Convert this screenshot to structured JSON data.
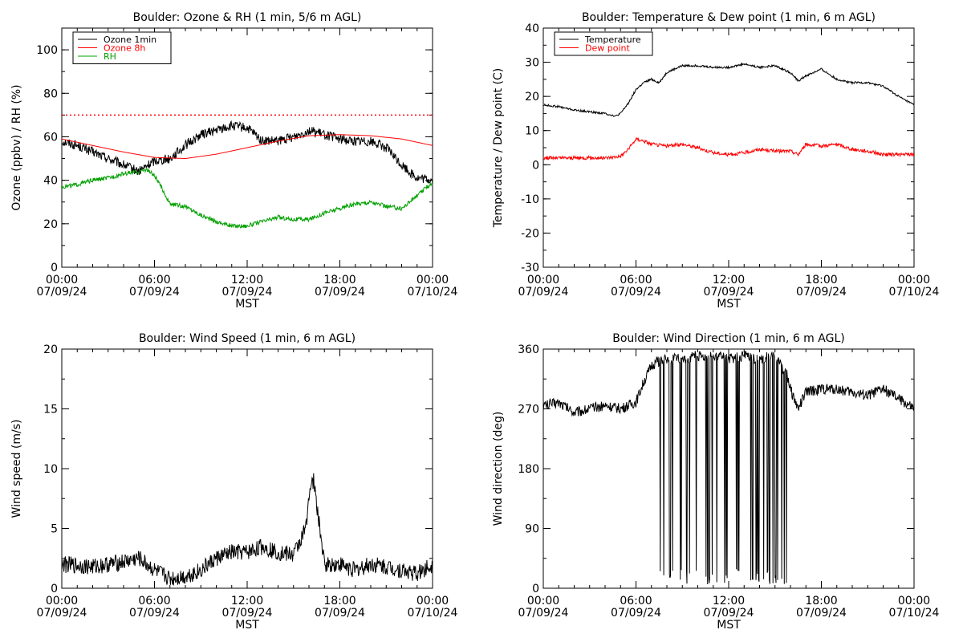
{
  "chart_data": [
    {
      "id": "ozone-rh",
      "type": "line",
      "title": "Boulder: Ozone & RH (1 min, 5/6 m AGL)",
      "xlabel": "MST",
      "ylabel": "Ozone (ppbv) / RH (%)",
      "xlim": [
        "07/09/24 00:00",
        "07/10/24 00:00"
      ],
      "ylim": [
        0,
        110
      ],
      "x_ticks": [
        {
          "time": "00:00",
          "date": "07/09/24"
        },
        {
          "time": "06:00",
          "date": "07/09/24"
        },
        {
          "time": "12:00",
          "date": "07/09/24"
        },
        {
          "time": "18:00",
          "date": "07/09/24"
        },
        {
          "time": "00:00",
          "date": "07/10/24"
        }
      ],
      "y_ticks": [
        0,
        20,
        40,
        60,
        80,
        100
      ],
      "grid": false,
      "legend": "top-left",
      "reference_line": {
        "y": 70,
        "color": "#ff0000",
        "style": "dotted"
      },
      "series": [
        {
          "name": "Ozone 1min",
          "color": "#000000",
          "noise": 2.2,
          "hours": [
            0,
            1,
            2,
            3,
            4,
            5,
            6,
            7,
            8,
            9,
            10,
            11,
            12,
            13,
            14,
            15,
            16,
            17,
            18,
            19,
            20,
            21,
            22,
            23,
            24
          ],
          "values": [
            58,
            56,
            53,
            50,
            47,
            44,
            49,
            50,
            56,
            61,
            63,
            65,
            64,
            58,
            58,
            60,
            63,
            61,
            59,
            58,
            58,
            55,
            47,
            41,
            40
          ]
        },
        {
          "name": "Ozone 8h",
          "color": "#ff0000",
          "noise": 0,
          "hours": [
            0,
            2,
            4,
            6,
            8,
            10,
            12,
            14,
            16,
            18,
            20,
            22,
            24
          ],
          "values": [
            59,
            56,
            53,
            50.5,
            50,
            52,
            55,
            58,
            60.5,
            61,
            60.5,
            59,
            56
          ]
        },
        {
          "name": "RH",
          "color": "#00a000",
          "noise": 1.0,
          "hours": [
            0,
            1,
            2,
            3,
            4,
            5,
            5.5,
            6,
            6.5,
            7,
            8,
            9,
            10,
            11,
            12,
            13,
            14,
            15,
            16,
            17,
            18,
            19,
            20,
            21,
            22,
            23,
            24
          ],
          "values": [
            37,
            38,
            40,
            41,
            43,
            44,
            45,
            42,
            36,
            29,
            28,
            24,
            21,
            19,
            19,
            21,
            23,
            22,
            22,
            25,
            27,
            29,
            30,
            28,
            27,
            33,
            39
          ]
        }
      ]
    },
    {
      "id": "temp-dew",
      "type": "line",
      "title": "Boulder: Temperature & Dew point (1 min, 6 m AGL)",
      "xlabel": "MST",
      "ylabel": "Temperature / Dew point (C)",
      "xlim": [
        "07/09/24 00:00",
        "07/10/24 00:00"
      ],
      "ylim": [
        -30,
        40
      ],
      "x_ticks": [
        {
          "time": "00:00",
          "date": "07/09/24"
        },
        {
          "time": "06:00",
          "date": "07/09/24"
        },
        {
          "time": "12:00",
          "date": "07/09/24"
        },
        {
          "time": "18:00",
          "date": "07/09/24"
        },
        {
          "time": "00:00",
          "date": "07/10/24"
        }
      ],
      "y_ticks": [
        -30,
        -20,
        -10,
        0,
        10,
        20,
        30,
        40
      ],
      "grid": false,
      "legend": "top-left",
      "series": [
        {
          "name": "Temperature",
          "color": "#000000",
          "noise": 0.3,
          "hours": [
            0,
            1,
            2,
            3,
            4,
            4.7,
            5,
            5.5,
            6,
            6.5,
            7,
            7.5,
            8,
            9,
            10,
            11,
            12,
            13,
            14,
            15,
            16,
            16.5,
            17,
            18,
            19,
            20,
            21,
            22,
            23,
            24
          ],
          "values": [
            17.5,
            17,
            16,
            15.5,
            15,
            14.2,
            15,
            18,
            22,
            24,
            25,
            24,
            27,
            29,
            29,
            28.5,
            28.5,
            29.5,
            28.5,
            29,
            27,
            24.5,
            26,
            28,
            25,
            24,
            24,
            23,
            20,
            17.5
          ]
        },
        {
          "name": "Dew point",
          "color": "#ff0000",
          "noise": 0.5,
          "hours": [
            0,
            1,
            2,
            3,
            4,
            5,
            5.5,
            6,
            6.5,
            7,
            8,
            9,
            10,
            11,
            12,
            13,
            14,
            15,
            16,
            16.5,
            17,
            18,
            19,
            20,
            21,
            22,
            23,
            24
          ],
          "values": [
            2,
            2,
            2,
            2,
            2,
            2.5,
            4.5,
            7.5,
            7,
            6,
            5.5,
            6,
            5,
            3.5,
            3,
            3.5,
            4.5,
            4,
            4,
            3,
            6,
            5.5,
            6,
            4.5,
            4,
            3,
            3,
            3
          ]
        }
      ]
    },
    {
      "id": "wind-speed",
      "type": "line",
      "title": "Boulder: Wind Speed (1 min, 6 m AGL)",
      "xlabel": "MST",
      "ylabel": "Wind speed (m/s)",
      "xlim": [
        "07/09/24 00:00",
        "07/10/24 00:00"
      ],
      "ylim": [
        0,
        20
      ],
      "x_ticks": [
        {
          "time": "00:00",
          "date": "07/09/24"
        },
        {
          "time": "06:00",
          "date": "07/09/24"
        },
        {
          "time": "12:00",
          "date": "07/09/24"
        },
        {
          "time": "18:00",
          "date": "07/09/24"
        },
        {
          "time": "00:00",
          "date": "07/10/24"
        }
      ],
      "y_ticks": [
        0,
        5,
        10,
        15,
        20
      ],
      "grid": false,
      "legend": "none",
      "series": [
        {
          "color": "#000000",
          "noise": 0.7,
          "hours": [
            0,
            2,
            4,
            5,
            6,
            7,
            8,
            9,
            10,
            11,
            12,
            13,
            14,
            15,
            15.8,
            16,
            16.3,
            16.6,
            17,
            18,
            19,
            20,
            21,
            22,
            23,
            24
          ],
          "values": [
            2,
            1.8,
            2.2,
            2.5,
            1.5,
            0.8,
            1,
            1.5,
            2.5,
            3,
            3,
            3.5,
            3,
            2.8,
            5,
            8,
            9,
            6,
            2,
            2,
            1.5,
            2,
            1.8,
            1.5,
            1.2,
            2
          ]
        }
      ]
    },
    {
      "id": "wind-direction",
      "type": "line",
      "title": "Boulder: Wind Direction (1 min, 6 m AGL)",
      "xlabel": "MST",
      "ylabel": "Wind direction (deg)",
      "xlim": [
        "07/09/24 00:00",
        "07/10/24 00:00"
      ],
      "ylim": [
        0,
        360
      ],
      "x_ticks": [
        {
          "time": "00:00",
          "date": "07/09/24"
        },
        {
          "time": "06:00",
          "date": "07/09/24"
        },
        {
          "time": "12:00",
          "date": "07/09/24"
        },
        {
          "time": "18:00",
          "date": "07/09/24"
        },
        {
          "time": "00:00",
          "date": "07/10/24"
        }
      ],
      "y_ticks": [
        0,
        90,
        180,
        270,
        360
      ],
      "grid": false,
      "legend": "none",
      "series": [
        {
          "color": "#000000",
          "noise": 8,
          "wrap_hours": [
            7.3,
            15.8
          ],
          "hours": [
            0,
            1,
            2,
            3,
            4,
            5,
            6,
            6.5,
            7,
            7.3,
            8,
            9,
            10,
            11,
            12,
            13,
            14,
            15,
            15.8,
            16,
            16.5,
            17,
            18,
            19,
            20,
            21,
            22,
            23,
            24
          ],
          "values": [
            275,
            280,
            265,
            270,
            275,
            270,
            280,
            310,
            335,
            340,
            345,
            345,
            350,
            350,
            345,
            350,
            345,
            350,
            320,
            300,
            270,
            295,
            300,
            300,
            295,
            290,
            300,
            285,
            270
          ]
        }
      ]
    }
  ]
}
